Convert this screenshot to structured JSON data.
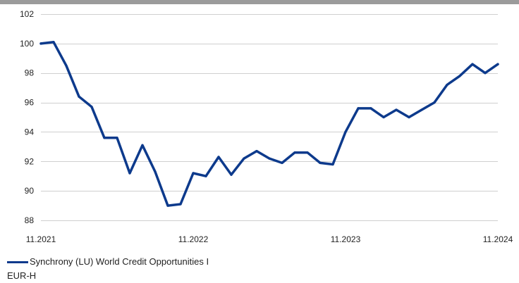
{
  "chart_data": {
    "type": "line",
    "title": "",
    "xlabel": "",
    "ylabel": "",
    "ylim": [
      88,
      102
    ],
    "yticks": [
      88,
      90,
      92,
      94,
      96,
      98,
      100,
      102
    ],
    "grid": "horizontal",
    "legend_position": "bottom-left",
    "x_tick_labels": [
      "11.2021",
      "11.2022",
      "11.2023",
      "11.2024"
    ],
    "x": [
      "11.2021",
      "12.2021",
      "01.2022",
      "02.2022",
      "03.2022",
      "04.2022",
      "05.2022",
      "06.2022",
      "07.2022",
      "08.2022",
      "09.2022",
      "10.2022",
      "11.2022",
      "12.2022",
      "01.2023",
      "02.2023",
      "03.2023",
      "04.2023",
      "05.2023",
      "06.2023",
      "07.2023",
      "08.2023",
      "09.2023",
      "10.2023",
      "11.2023",
      "12.2023",
      "01.2024",
      "02.2024",
      "03.2024",
      "04.2024",
      "05.2024",
      "06.2024",
      "07.2024",
      "08.2024",
      "09.2024",
      "10.2024",
      "11.2024"
    ],
    "series": [
      {
        "name": "Synchrony (LU) World Credit Opportunities I EUR-H",
        "color": "#0d3a8c",
        "values": [
          100.0,
          100.1,
          98.5,
          96.4,
          95.7,
          93.6,
          93.6,
          91.2,
          93.1,
          91.3,
          89.0,
          89.1,
          91.2,
          91.0,
          92.3,
          91.1,
          92.2,
          92.7,
          92.2,
          91.9,
          92.6,
          92.6,
          91.9,
          91.8,
          94.0,
          95.6,
          95.6,
          95.0,
          95.5,
          95.0,
          95.5,
          96.0,
          97.2,
          97.8,
          98.6,
          98.0,
          98.6
        ]
      }
    ]
  },
  "legend": {
    "line1": "Synchrony (LU) World Credit Opportunities I",
    "line2": "EUR-H"
  }
}
